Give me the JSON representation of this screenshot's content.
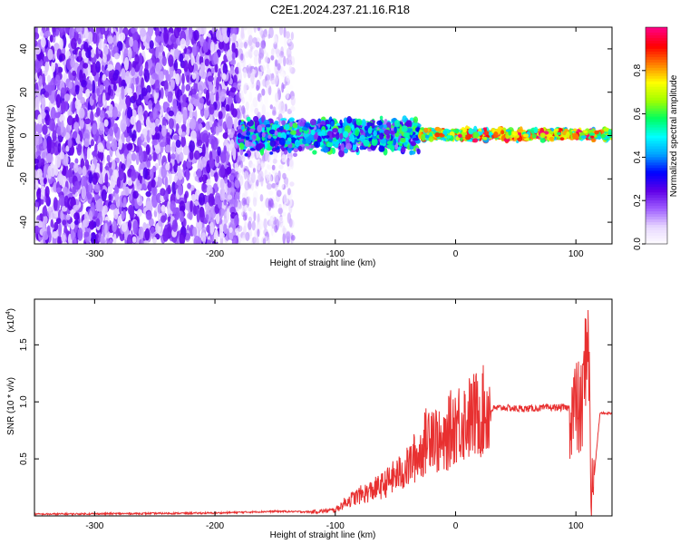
{
  "title": "C2E1.2024.237.21.16.R18",
  "chart_data": [
    {
      "type": "heatmap",
      "xlabel": "Height of straight line (km)",
      "ylabel": "Frequency (Hz)",
      "xlim": [
        -350,
        130
      ],
      "ylim": [
        -50,
        50
      ],
      "xticks": [
        -300,
        -200,
        -100,
        0,
        100
      ],
      "xtick_labels": [
        "-300",
        "-200",
        "-100",
        "0",
        "100"
      ],
      "yticks": [
        -40,
        -20,
        0,
        20,
        40
      ],
      "ytick_labels": [
        "-40",
        "-20",
        "0",
        "20",
        "40"
      ],
      "colorbar": {
        "label": "Normalized spectral amplitude",
        "range": [
          0,
          1
        ],
        "ticks": [
          0.0,
          0.2,
          0.4,
          0.6,
          0.8
        ],
        "tick_labels": [
          "0.0",
          "0.2",
          "0.4",
          "0.6",
          "0.8"
        ],
        "colors": [
          "#ffffff",
          "#e8d8ff",
          "#a060ff",
          "#6000e8",
          "#0000ff",
          "#00a0ff",
          "#00ffff",
          "#00ff60",
          "#a0ff00",
          "#ffff00",
          "#ff8000",
          "#ff0000",
          "#ff0080"
        ]
      },
      "regions": [
        {
          "x_range": [
            -350,
            -180
          ],
          "freq_range": [
            -50,
            50
          ],
          "amplitude": 0.15
        },
        {
          "x_range": [
            -180,
            -135
          ],
          "freq_range": [
            -50,
            50
          ],
          "amplitude": 0.05
        },
        {
          "x_range": [
            -180,
            -30
          ],
          "freq_range": [
            -10,
            10
          ],
          "amplitude": 0.35
        },
        {
          "x_range": [
            -30,
            130
          ],
          "freq_range": [
            -3,
            4
          ],
          "amplitude": 0.7
        }
      ]
    },
    {
      "type": "line",
      "xlabel": "Height of straight line (km)",
      "ylabel": "SNR (10 * v/v)",
      "multiplier": "(x10",
      "multiplier_exp": "4",
      "multiplier_close": ")",
      "xlim": [
        -350,
        130
      ],
      "ylim": [
        0,
        19000
      ],
      "xticks": [
        -300,
        -200,
        -100,
        0,
        100
      ],
      "xtick_labels": [
        "-300",
        "-200",
        "-100",
        "0",
        "100"
      ],
      "yticks": [
        5000,
        10000,
        15000
      ],
      "ytick_labels": [
        "0.5",
        "1.0",
        "1.5"
      ],
      "color": "#e83030",
      "x": [
        -350,
        -200,
        -150,
        -120,
        -100,
        -90,
        -80,
        -70,
        -60,
        -50,
        -45,
        -40,
        -35,
        -30,
        -25,
        -20,
        -15,
        -10,
        -5,
        0,
        10,
        20,
        30,
        40,
        50,
        60,
        70,
        80,
        90,
        100,
        105,
        110,
        113,
        120,
        130
      ],
      "y": [
        150,
        250,
        400,
        350,
        500,
        1300,
        1800,
        2200,
        2700,
        3500,
        3800,
        4200,
        5000,
        5400,
        6500,
        8000,
        6500,
        6000,
        7500,
        8200,
        8500,
        9000,
        9400,
        9500,
        9400,
        9400,
        9450,
        9500,
        9500,
        9400,
        9000,
        17000,
        1000,
        9000,
        9000
      ]
    }
  ]
}
